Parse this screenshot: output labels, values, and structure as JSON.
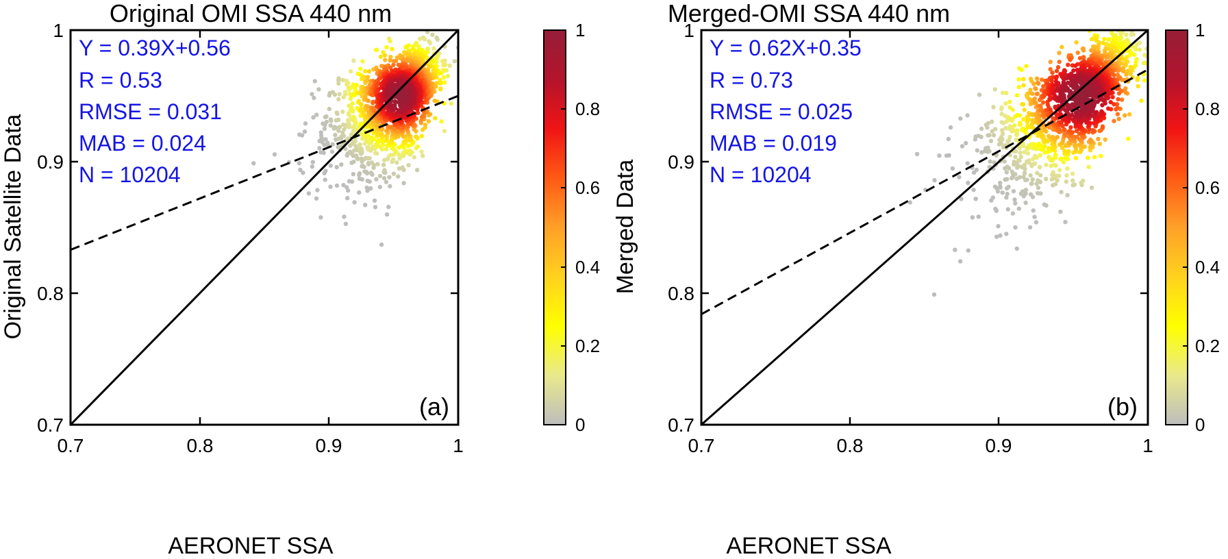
{
  "colors": {
    "annotation": "#1414e6",
    "axis": "#000000",
    "identity_line": "#000000",
    "fit_line": "#000000",
    "colormap": [
      "#bdbdbd",
      "#e9e98c",
      "#ffff00",
      "#ffd21e",
      "#ffa028",
      "#ff5a14",
      "#f01414",
      "#b4142d",
      "#961e37"
    ]
  },
  "chart_data": [
    {
      "type": "scatter",
      "panel_label": "(a)",
      "title": "Original OMI SSA 440 nm",
      "xlabel": "AERONET SSA",
      "ylabel": "Original Satellite Data",
      "xlim": [
        0.7,
        1
      ],
      "ylim": [
        0.7,
        1
      ],
      "xticks": [
        "0.7",
        "0.8",
        "0.9",
        "1"
      ],
      "yticks": [
        "0.7",
        "0.8",
        "0.9",
        "1"
      ],
      "colorbar": {
        "range": [
          0,
          1
        ],
        "ticks": [
          "0",
          "0.2",
          "0.4",
          "0.6",
          "0.8",
          "1"
        ]
      },
      "stats": [
        "Y = 0.39X+0.56",
        "R = 0.53",
        "RMSE = 0.031",
        "MAB = 0.024",
        "N = 10204"
      ],
      "fit": {
        "slope": 0.39,
        "intercept": 0.56
      },
      "identity_line": true,
      "density_peak": {
        "x": 0.955,
        "y": 0.95
      }
    },
    {
      "type": "scatter",
      "panel_label": "(b)",
      "title": "Merged-OMI SSA 440 nm",
      "xlabel": "AERONET SSA",
      "ylabel": "Merged Data",
      "xlim": [
        0.7,
        1
      ],
      "ylim": [
        0.7,
        1
      ],
      "xticks": [
        "0.7",
        "0.8",
        "0.9",
        "1"
      ],
      "yticks": [
        "0.7",
        "0.8",
        "0.9",
        "1"
      ],
      "colorbar": {
        "range": [
          0,
          1
        ],
        "ticks": [
          "0",
          "0.2",
          "0.4",
          "0.6",
          "0.8",
          "1"
        ]
      },
      "stats": [
        "Y = 0.62X+0.35",
        "R = 0.73",
        "RMSE = 0.025",
        "MAB = 0.019",
        "N = 10204"
      ],
      "fit": {
        "slope": 0.62,
        "intercept": 0.35
      },
      "identity_line": true,
      "density_peak": {
        "x": 0.955,
        "y": 0.95
      }
    }
  ]
}
